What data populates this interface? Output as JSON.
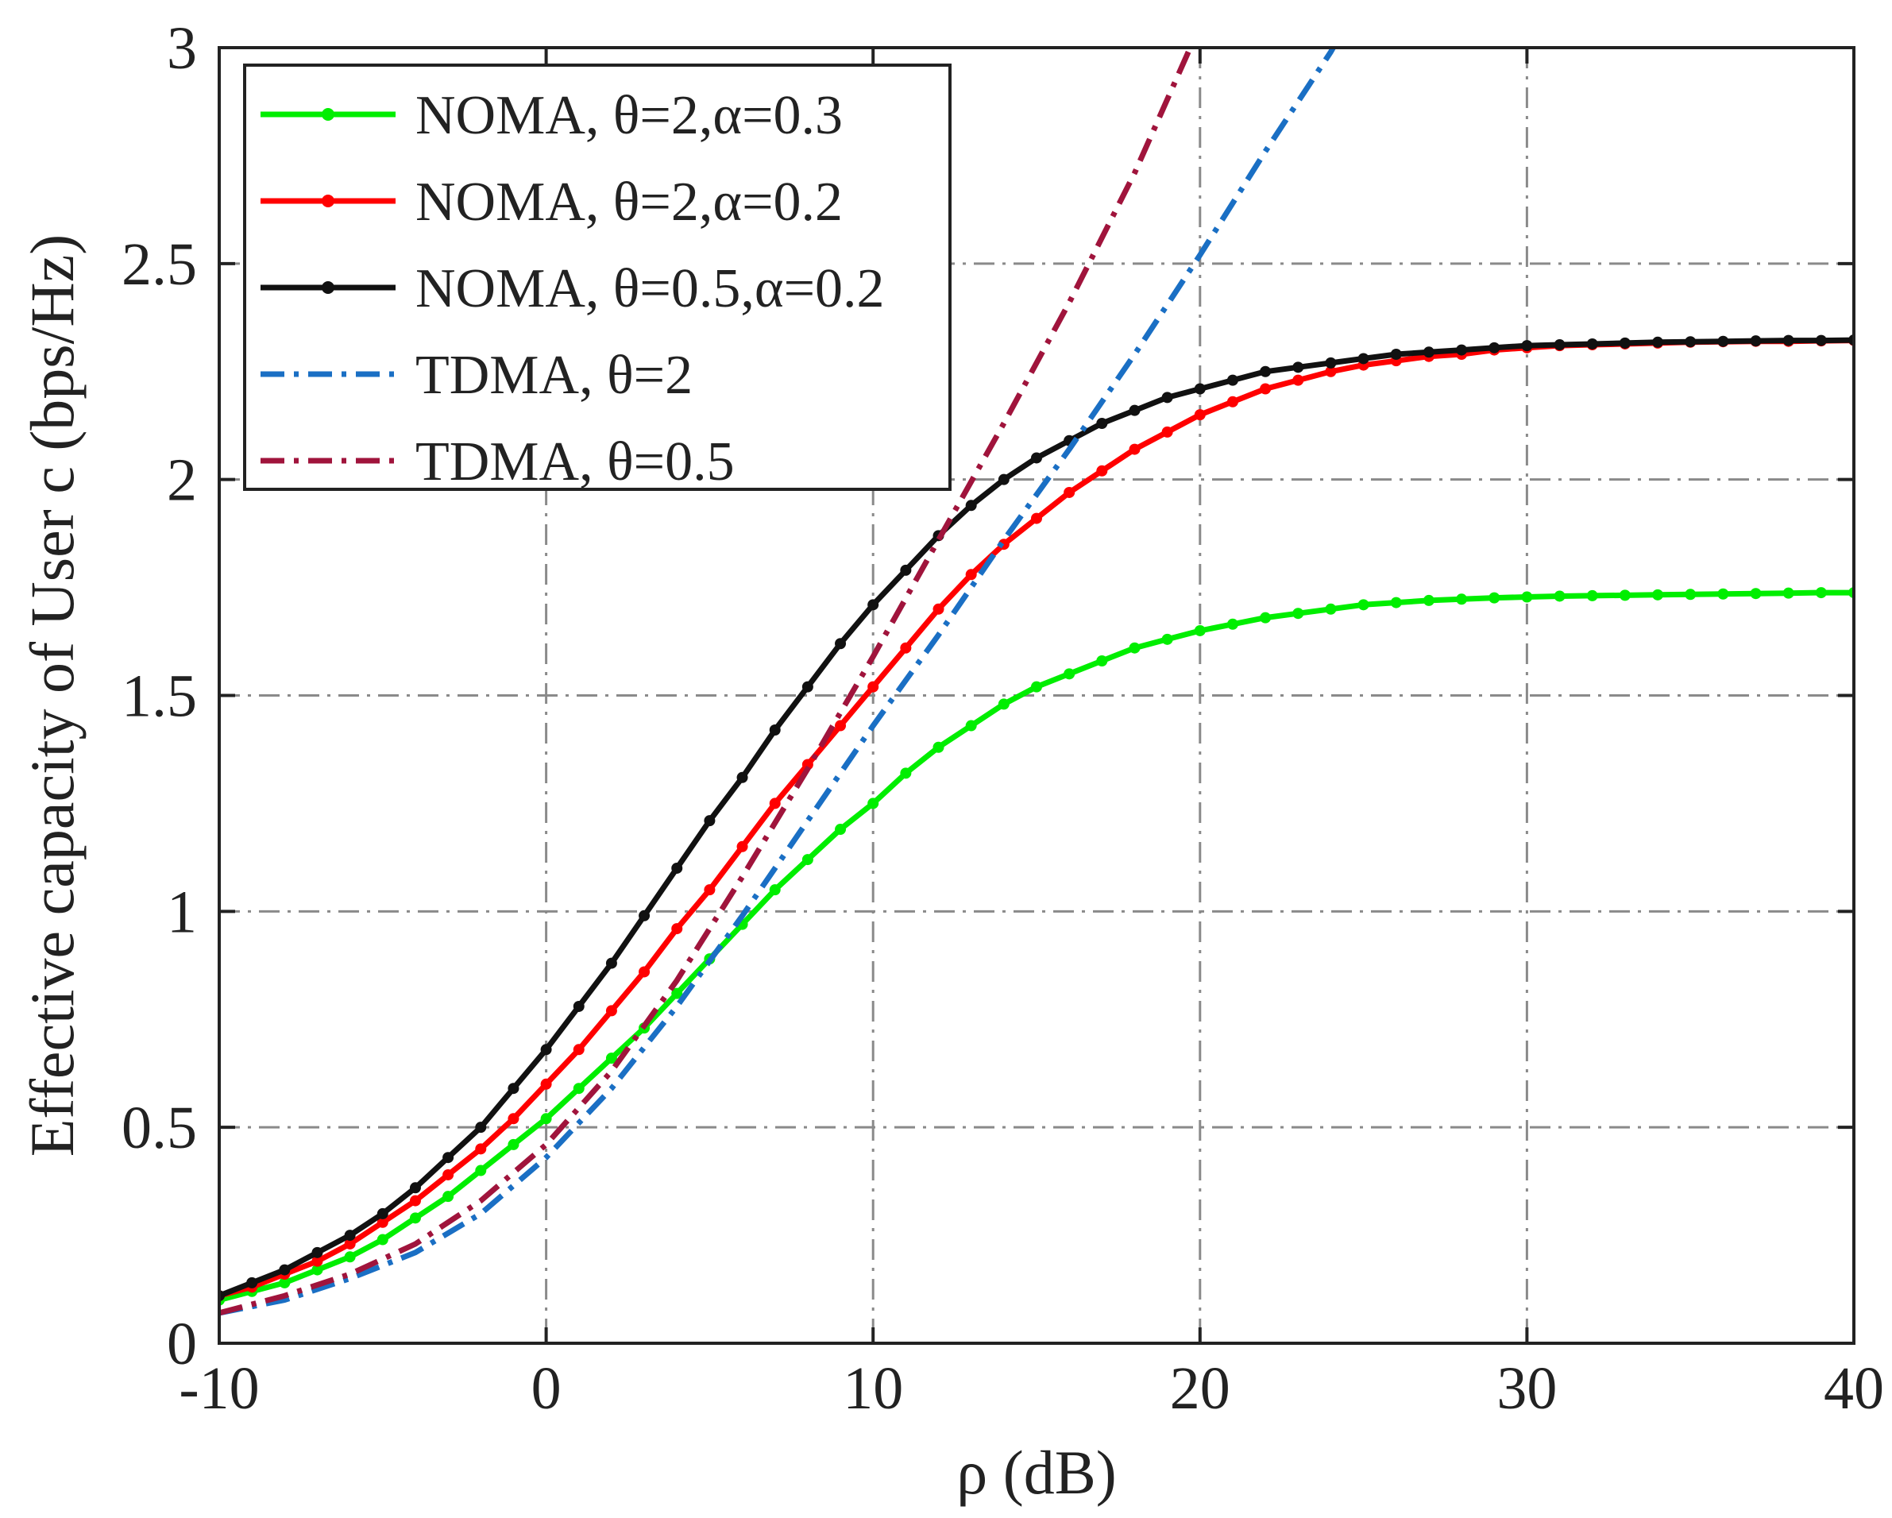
{
  "chart_data": {
    "type": "line",
    "xlabel": "ρ (dB)",
    "ylabel": "Effective capacity of User  c (bps/Hz)",
    "xlim": [
      -10,
      40
    ],
    "ylim": [
      0,
      3
    ],
    "xticks": [
      -10,
      0,
      10,
      20,
      30,
      40
    ],
    "xtick_labels": [
      "-10",
      "0",
      "10",
      "20",
      "30",
      "40"
    ],
    "yticks": [
      0,
      0.5,
      1,
      1.5,
      2,
      2.5,
      3
    ],
    "ytick_labels": [
      "0",
      "0.5",
      "1",
      "1.5",
      "2",
      "2.5",
      "3"
    ],
    "grid": true,
    "legend_position": "top-left",
    "series": [
      {
        "name": "NOMA, θ=2,α=0.3",
        "color": "#00ee00",
        "linestyle": "solid",
        "marker": "dot",
        "x": [
          -10,
          -9,
          -8,
          -7,
          -6,
          -5,
          -4,
          -3,
          -2,
          -1,
          0,
          1,
          2,
          3,
          4,
          5,
          6,
          7,
          8,
          9,
          10,
          11,
          12,
          13,
          14,
          15,
          16,
          17,
          18,
          19,
          20,
          21,
          22,
          23,
          24,
          25,
          26,
          27,
          28,
          29,
          30,
          31,
          32,
          33,
          34,
          35,
          36,
          37,
          38,
          39,
          40
        ],
        "y": [
          0.1,
          0.12,
          0.14,
          0.17,
          0.2,
          0.24,
          0.29,
          0.34,
          0.4,
          0.46,
          0.52,
          0.59,
          0.66,
          0.73,
          0.81,
          0.89,
          0.97,
          1.05,
          1.12,
          1.19,
          1.25,
          1.32,
          1.38,
          1.43,
          1.48,
          1.52,
          1.55,
          1.58,
          1.61,
          1.63,
          1.65,
          1.665,
          1.68,
          1.69,
          1.7,
          1.71,
          1.715,
          1.72,
          1.723,
          1.726,
          1.728,
          1.73,
          1.731,
          1.732,
          1.733,
          1.734,
          1.735,
          1.736,
          1.737,
          1.738,
          1.738
        ]
      },
      {
        "name": "NOMA, θ=2,α=0.2",
        "color": "#ff0000",
        "linestyle": "solid",
        "marker": "dot",
        "x": [
          -10,
          -9,
          -8,
          -7,
          -6,
          -5,
          -4,
          -3,
          -2,
          -1,
          0,
          1,
          2,
          3,
          4,
          5,
          6,
          7,
          8,
          9,
          10,
          11,
          12,
          13,
          14,
          15,
          16,
          17,
          18,
          19,
          20,
          21,
          22,
          23,
          24,
          25,
          26,
          27,
          28,
          29,
          30,
          31,
          32,
          33,
          34,
          35,
          36,
          37,
          38,
          39,
          40
        ],
        "y": [
          0.11,
          0.13,
          0.16,
          0.19,
          0.23,
          0.28,
          0.33,
          0.39,
          0.45,
          0.52,
          0.6,
          0.68,
          0.77,
          0.86,
          0.96,
          1.05,
          1.15,
          1.25,
          1.34,
          1.43,
          1.52,
          1.61,
          1.7,
          1.78,
          1.85,
          1.91,
          1.97,
          2.02,
          2.07,
          2.11,
          2.15,
          2.18,
          2.21,
          2.23,
          2.25,
          2.265,
          2.275,
          2.285,
          2.29,
          2.3,
          2.305,
          2.31,
          2.312,
          2.314,
          2.316,
          2.318,
          2.319,
          2.32,
          2.32,
          2.321,
          2.322
        ]
      },
      {
        "name": "NOMA, θ=0.5,α=0.2",
        "color": "#111111",
        "linestyle": "solid",
        "marker": "dot",
        "x": [
          -10,
          -9,
          -8,
          -7,
          -6,
          -5,
          -4,
          -3,
          -2,
          -1,
          0,
          1,
          2,
          3,
          4,
          5,
          6,
          7,
          8,
          9,
          10,
          11,
          12,
          13,
          14,
          15,
          16,
          17,
          18,
          19,
          20,
          21,
          22,
          23,
          24,
          25,
          26,
          27,
          28,
          29,
          30,
          31,
          32,
          33,
          34,
          35,
          36,
          37,
          38,
          39,
          40
        ],
        "y": [
          0.11,
          0.14,
          0.17,
          0.21,
          0.25,
          0.3,
          0.36,
          0.43,
          0.5,
          0.59,
          0.68,
          0.78,
          0.88,
          0.99,
          1.1,
          1.21,
          1.31,
          1.42,
          1.52,
          1.62,
          1.71,
          1.79,
          1.87,
          1.94,
          2.0,
          2.05,
          2.09,
          2.13,
          2.16,
          2.19,
          2.21,
          2.23,
          2.25,
          2.26,
          2.27,
          2.28,
          2.29,
          2.295,
          2.3,
          2.305,
          2.31,
          2.312,
          2.314,
          2.316,
          2.318,
          2.319,
          2.32,
          2.321,
          2.322,
          2.322,
          2.323
        ]
      },
      {
        "name": "TDMA, θ=2",
        "color": "#1a6fc4",
        "linestyle": "dashdot",
        "marker": "none",
        "x": [
          -10,
          -8,
          -6,
          -4,
          -2,
          0,
          2,
          4,
          6,
          8,
          10,
          12,
          14,
          16,
          18,
          20,
          22,
          24,
          24.3
        ],
        "y": [
          0.07,
          0.1,
          0.15,
          0.21,
          0.3,
          0.43,
          0.59,
          0.78,
          0.99,
          1.21,
          1.43,
          1.64,
          1.86,
          2.07,
          2.29,
          2.52,
          2.76,
          2.99,
          3.03
        ]
      },
      {
        "name": "TDMA, θ=0.5",
        "color": "#a0143c",
        "linestyle": "dashdot",
        "marker": "none",
        "x": [
          -10,
          -8,
          -6,
          -4,
          -2,
          0,
          2,
          4,
          6,
          8,
          10,
          12,
          14,
          16,
          18,
          19.7
        ],
        "y": [
          0.07,
          0.11,
          0.16,
          0.23,
          0.33,
          0.46,
          0.63,
          0.84,
          1.08,
          1.33,
          1.59,
          1.86,
          2.13,
          2.41,
          2.71,
          3.0
        ]
      }
    ]
  }
}
